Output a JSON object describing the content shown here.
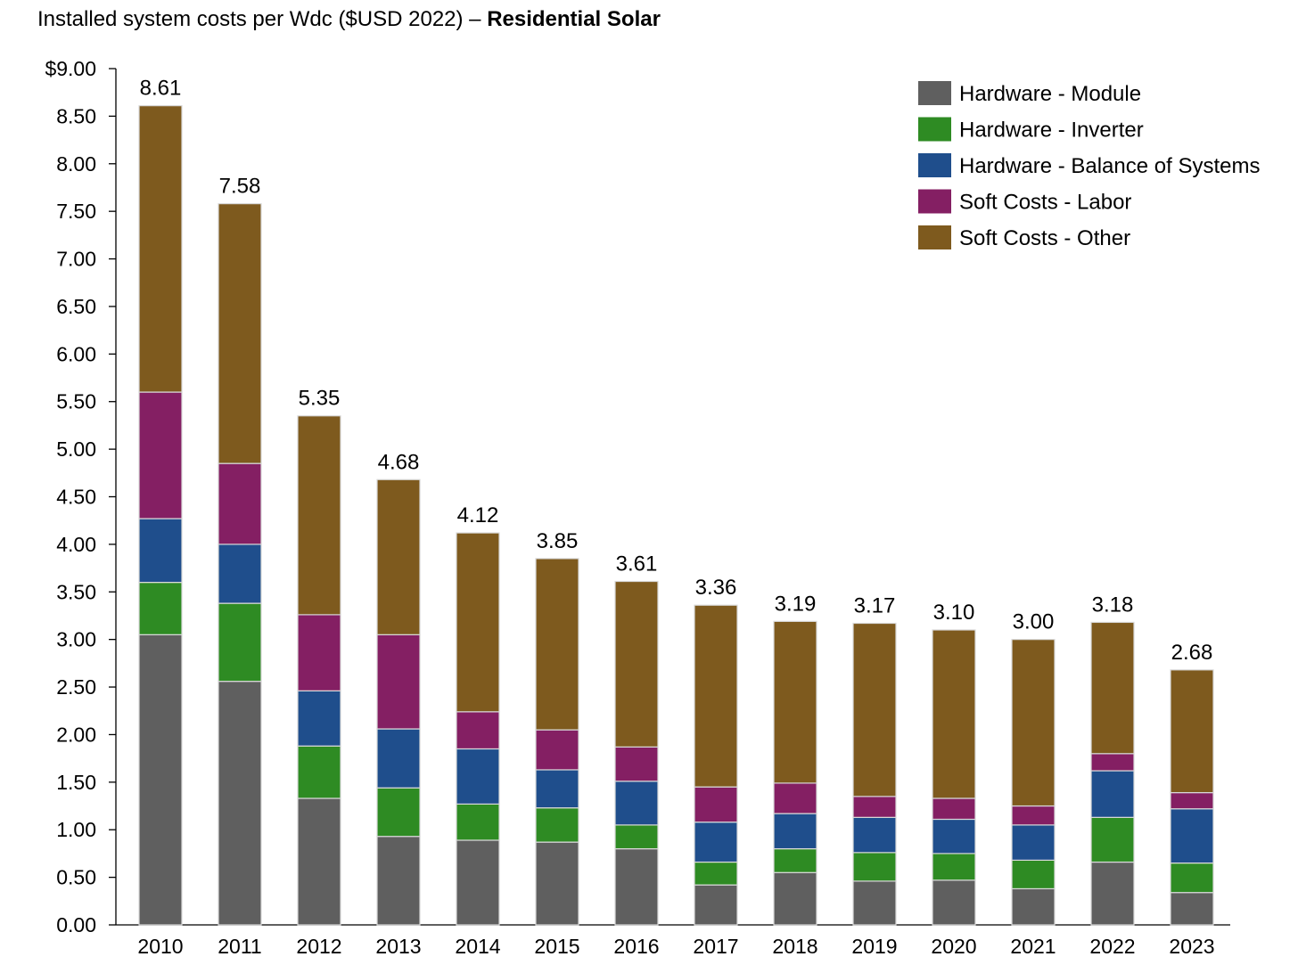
{
  "title_prefix": "Installed system costs per Wdc ($USD 2022) – ",
  "title_bold": "Residential Solar",
  "chart_data": {
    "type": "bar",
    "stacked": true,
    "title": "Installed system costs per Wdc ($USD 2022) – Residential Solar",
    "xlabel": "",
    "ylabel": "",
    "ylim": [
      0,
      9
    ],
    "y_ticks": [
      "0.00",
      "0.50",
      "1.00",
      "1.50",
      "2.00",
      "2.50",
      "3.00",
      "3.50",
      "4.00",
      "4.50",
      "5.00",
      "5.50",
      "6.00",
      "6.50",
      "7.00",
      "7.50",
      "8.00",
      "8.50",
      "$9.00"
    ],
    "grid": false,
    "legend_position": "top-right",
    "categories": [
      "2010",
      "2011",
      "2012",
      "2013",
      "2014",
      "2015",
      "2016",
      "2017",
      "2018",
      "2019",
      "2020",
      "2021",
      "2022",
      "2023"
    ],
    "totals": [
      "8.61",
      "7.58",
      "5.35",
      "4.68",
      "4.12",
      "3.85",
      "3.61",
      "3.36",
      "3.19",
      "3.17",
      "3.10",
      "3.00",
      "3.18",
      "2.68"
    ],
    "series": [
      {
        "name": "Hardware - Module",
        "color": "#5f5f5f",
        "values": [
          3.05,
          2.56,
          1.33,
          0.93,
          0.89,
          0.87,
          0.8,
          0.42,
          0.55,
          0.46,
          0.47,
          0.38,
          0.66,
          0.34
        ]
      },
      {
        "name": "Hardware - Inverter",
        "color": "#2e8b23",
        "values": [
          0.55,
          0.82,
          0.55,
          0.51,
          0.38,
          0.36,
          0.25,
          0.24,
          0.25,
          0.3,
          0.28,
          0.3,
          0.47,
          0.31
        ]
      },
      {
        "name": "Hardware - Balance of Systems",
        "color": "#1f4e8c",
        "values": [
          0.67,
          0.62,
          0.58,
          0.62,
          0.58,
          0.4,
          0.46,
          0.42,
          0.37,
          0.37,
          0.36,
          0.37,
          0.49,
          0.57
        ]
      },
      {
        "name": "Soft Costs - Labor",
        "color": "#841f63",
        "values": [
          1.33,
          0.85,
          0.8,
          0.99,
          0.39,
          0.42,
          0.36,
          0.37,
          0.32,
          0.22,
          0.22,
          0.2,
          0.18,
          0.17
        ]
      },
      {
        "name": "Soft Costs - Other",
        "color": "#7e5a1e",
        "values": [
          3.01,
          2.73,
          2.09,
          1.63,
          1.88,
          1.8,
          1.74,
          1.91,
          1.7,
          1.82,
          1.77,
          1.75,
          1.38,
          1.29
        ]
      }
    ]
  }
}
